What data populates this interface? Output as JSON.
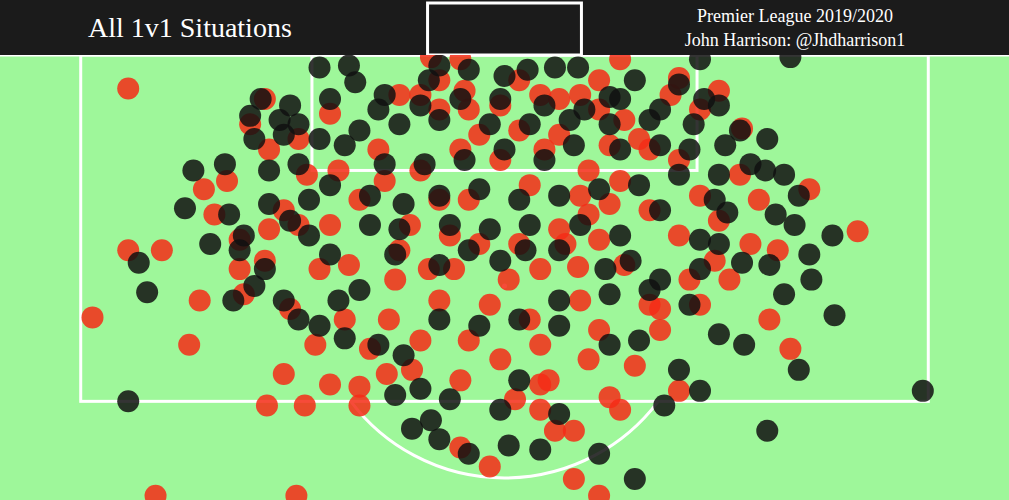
{
  "chart_data": {
    "type": "scatter",
    "title": "All 1v1 Situations",
    "subtitle": "Premier League 2019/2020",
    "annotations": [
      "John Harrison: @Jhdharrison1"
    ],
    "xlim": [
      -24,
      24
    ],
    "ylim": [
      0,
      21.2
    ],
    "tick_labels": false,
    "grid": false,
    "series": [
      {
        "color": "#f52c16",
        "marker": "circle",
        "x": [
          -17.9,
          -19.6,
          -17.9,
          -16.3,
          -15.0,
          -16.6,
          -9.9,
          -11.3,
          -9.5,
          -10.5,
          -8.3,
          -6.9,
          -6.9,
          -5.6,
          -4.4,
          -2.1,
          -0.7,
          4.5,
          2.4,
          3.3,
          5.0,
          1.7,
          0.5,
          2.1,
          4.0,
          6.2,
          7.4,
          9.3,
          12.6,
          13.0,
          13.6,
          16.8,
          14.5,
          11.3,
          8.3,
          5.5,
          -3.5,
          -1.9,
          -12.6,
          -12.4,
          -14.5,
          -13.8,
          -14.3,
          -13.2,
          -12.1,
          -11.4,
          -8.3,
          -9.4,
          -8.8,
          -7.6,
          -5.5,
          -3.1,
          -0.7,
          1.2,
          3.6,
          5.7,
          4.5,
          2.9,
          3.5,
          0.7,
          -1.2,
          -2.6,
          -4.5,
          -6.9,
          -7.9,
          -6.0,
          -5.0,
          -4.0,
          -3.1,
          -1.7,
          -0.2,
          0.7,
          1.7,
          2.6,
          3.6,
          4.5,
          5.7,
          6.9,
          8.3,
          9.3,
          10.2,
          11.2,
          12.1,
          8.3,
          6.9,
          1.9,
          -0.2,
          -2.1,
          -4.0,
          -5.7,
          -7.4,
          -10.2,
          -11.2,
          -10.5,
          -9.8,
          -1.2,
          0.7,
          2.6,
          4.0,
          5.5,
          6.4,
          9.3,
          10.2,
          4.0,
          5.0,
          1.2,
          -1.7,
          -3.1,
          -5.0,
          -3.6,
          1.7,
          6.9,
          8.8,
          10.0,
          11.7,
          10.7,
          7.4,
          4.5,
          1.7,
          -1.7,
          -4.0,
          -6.4,
          -9.0,
          -11.4,
          -2.1,
          -0.2,
          5.5,
          8.3,
          1.7,
          3.3,
          -3.1,
          -2.1,
          4.5,
          7.9,
          5.0,
          -9.8,
          -11.2,
          -8.3,
          -12.6,
          -5.2,
          0.2,
          2.6,
          -2.4,
          3.6
        ],
        "values": [
          1.6,
          12.5,
          9.3,
          9.3,
          13.8,
          21.0,
          21.0,
          16.7,
          16.7,
          15.2,
          15.7,
          15.8,
          16.7,
          15.2,
          15.0,
          18.7,
          19.6,
          21.0,
          17.9,
          17.9,
          16.3,
          15.7,
          16.4,
          15.5,
          14.5,
          14.8,
          12.1,
          11.9,
          12.6,
          9.3,
          14.0,
          8.4,
          6.4,
          3.5,
          1.1,
          0.2,
          0.1,
          1.7,
          10.2,
          11.4,
          11.7,
          7.6,
          6.4,
          6.0,
          3.3,
          2.1,
          2.8,
          5.7,
          10.2,
          12.6,
          12.6,
          11.7,
          11.9,
          12.6,
          11.7,
          10.0,
          8.8,
          9.0,
          10.1,
          9.0,
          9.0,
          8.6,
          8.1,
          6.9,
          5.5,
          4.5,
          1.9,
          1.9,
          2.6,
          2.6,
          2.4,
          1.2,
          1.9,
          2.1,
          1.9,
          2.6,
          3.1,
          4.5,
          5.0,
          6.7,
          7.9,
          5.7,
          6.9,
          8.6,
          7.4,
          4.5,
          5.0,
          4.5,
          5.5,
          6.0,
          10.0,
          12.1,
          8.3,
          7.4,
          8.1,
          3.8,
          3.6,
          3.8,
          5.5,
          6.0,
          4.0,
          2.6,
          1.7,
          7.6,
          7.1,
          6.2,
          6.9,
          6.9,
          9.3,
          10.2,
          10.2,
          11.9,
          10.7,
          9.8,
          9.0,
          10.7,
          13.1,
          13.1,
          13.8,
          13.6,
          13.6,
          14.0,
          13.8,
          9.8,
          15.5,
          14.5,
          16.9,
          16.0,
          16.9,
          20.2,
          1.2,
          0.2,
          1.2,
          1.9,
          4.3,
          4.0,
          4.5,
          8.1,
          8.8,
          10.7,
          10.7,
          8.3,
          10.2,
          6.7
        ]
      },
      {
        "color": "#101010",
        "marker": "circle",
        "x": [
          -17.9,
          -17.0,
          -17.4,
          -15.2,
          -14.8,
          -13.3,
          -13.1,
          -12.4,
          -11.9,
          -11.4,
          -12.9,
          -12.1,
          -11.6,
          -10.2,
          -9.8,
          -8.8,
          -7.4,
          -7.1,
          -5.7,
          -3.1,
          -3.6,
          -1.7,
          0.0,
          1.1,
          2.4,
          3.5,
          5.0,
          6.2,
          8.3,
          9.3,
          9.5,
          10.2,
          11.2,
          12.5,
          13.6,
          12.4,
          13.3,
          11.7,
          10.6,
          10.0,
          11.3,
          12.6,
          13.8,
          13.3,
          14.6,
          15.7,
          15.6,
          14.5,
          19.9,
          12.5,
          9.3,
          7.6,
          6.2,
          4.5,
          2.6,
          1.7,
          0.2,
          -1.7,
          -3.1,
          -3.5,
          -4.4,
          -2.6,
          -4.0,
          -5.2,
          -4.8,
          -6.0,
          -3.1,
          -1.2,
          0.7,
          2.6,
          5.0,
          6.4,
          8.3,
          10.2,
          11.4,
          14.0,
          8.8,
          6.9,
          5.0,
          2.6,
          0.7,
          -0.2,
          -10.5,
          -9.8,
          -8.8,
          -7.9,
          -6.9,
          -5.2,
          -3.1,
          -1.7,
          -0.2,
          1.0,
          2.6,
          4.8,
          6.0,
          7.4,
          9.3,
          10.2,
          9.3,
          7.4,
          5.5,
          3.6,
          1.2,
          -0.7,
          -2.6,
          -5.0,
          -6.4,
          -8.3,
          -9.3,
          -10.2,
          -11.2,
          -9.3,
          -8.3,
          -6.4,
          -4.8,
          -3.1,
          -1.2,
          0.7,
          2.6,
          4.5,
          6.4,
          8.3,
          10.2,
          8.8,
          7.4,
          5.5,
          3.3,
          1.9,
          0.0,
          -1.9,
          -3.8,
          -5.7,
          -7.6,
          -9.8,
          -11.2,
          -11.9,
          -10.5,
          -8.8,
          -6.9,
          -5.0,
          -3.1,
          -0.7,
          1.2,
          3.1,
          5.0,
          6.9,
          9.0,
          10.5,
          1.9,
          -0.2,
          -2.1,
          -4.0,
          -6.0,
          -8.3,
          -10.7,
          3.8,
          5.5,
          7.4,
          12.9,
          -12.6,
          -14.0,
          14.0,
          -7.6
        ],
        "values": [
          16.5,
          11.3,
          9.9,
          7.3,
          5.5,
          5.2,
          7.6,
          8.6,
          11.0,
          10.2,
          11.7,
          2.9,
          2.1,
          2.4,
          3.3,
          0.6,
          0.5,
          1.3,
          1.9,
          0.5,
          1.2,
          0.7,
          1.0,
          0.7,
          0.6,
          0.6,
          2.0,
          1.2,
          1.4,
          0.2,
          2.1,
          2.4,
          3.6,
          4.0,
          0.1,
          5.5,
          5.7,
          5.2,
          7.5,
          6.9,
          9.9,
          10.0,
          8.1,
          11.4,
          10.7,
          12.4,
          8.6,
          9.5,
          16.0,
          17.9,
          16.0,
          16.7,
          20.2,
          19.0,
          17.1,
          18.8,
          18.6,
          19.0,
          18.3,
          17.4,
          17.8,
          16.4,
          15.9,
          16.2,
          14.3,
          13.8,
          12.6,
          12.9,
          12.6,
          12.9,
          13.8,
          13.6,
          15.0,
          13.3,
          13.8,
          15.0,
          11.9,
          11.2,
          11.4,
          11.7,
          15.5,
          16.9,
          11.7,
          12.6,
          12.9,
          11.7,
          11.2,
          9.5,
          10.0,
          9.3,
          9.8,
          9.3,
          9.3,
          10.2,
          9.8,
          10.7,
          10.2,
          9.0,
          8.8,
          7.4,
          8.6,
          8.1,
          8.1,
          8.3,
          8.1,
          8.3,
          8.1,
          9.5,
          8.6,
          7.9,
          7.1,
          6.9,
          6.2,
          6.7,
          7.1,
          6.7,
          6.4,
          6.9,
          6.7,
          6.4,
          6.2,
          5.7,
          5.7,
          4.5,
          4.3,
          4.5,
          4.3,
          5.0,
          4.5,
          5.0,
          5.2,
          5.2,
          4.3,
          5.2,
          5.5,
          4.0,
          3.8,
          4.0,
          3.6,
          3.3,
          3.1,
          3.3,
          3.3,
          3.1,
          3.3,
          3.1,
          3.3,
          4.3,
          2.4,
          2.1,
          2.1,
          2.4,
          2.6,
          2.1,
          3.1,
          2.6,
          2.1,
          2.6,
          7.6,
          9.3,
          9.0,
          6.7,
          13.5
        ]
      }
    ]
  }
}
